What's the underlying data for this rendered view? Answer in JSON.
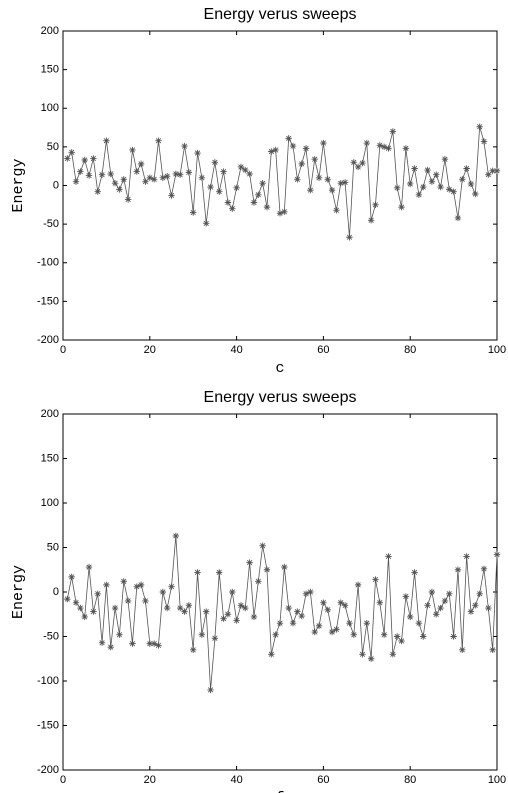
{
  "chart_data": [
    {
      "type": "line",
      "title": "Energy verus sweeps",
      "xlabel": "c",
      "ylabel": "Energy",
      "color": "#555555",
      "xlim": [
        0,
        100
      ],
      "ylim": [
        -200,
        200
      ],
      "xticks": [
        0,
        20,
        40,
        60,
        80,
        100
      ],
      "yticks": [
        -200,
        -150,
        -100,
        -50,
        0,
        50,
        100,
        150,
        200
      ],
      "x": [
        1,
        2,
        3,
        4,
        5,
        6,
        7,
        8,
        9,
        10,
        11,
        12,
        13,
        14,
        15,
        16,
        17,
        18,
        19,
        20,
        21,
        22,
        23,
        24,
        25,
        26,
        27,
        28,
        29,
        30,
        31,
        32,
        33,
        34,
        35,
        36,
        37,
        38,
        39,
        40,
        41,
        42,
        43,
        44,
        45,
        46,
        47,
        48,
        49,
        50,
        51,
        52,
        53,
        54,
        55,
        56,
        57,
        58,
        59,
        60,
        61,
        62,
        63,
        64,
        65,
        66,
        67,
        68,
        69,
        70,
        71,
        72,
        73,
        74,
        75,
        76,
        77,
        78,
        79,
        80,
        81,
        82,
        83,
        84,
        85,
        86,
        87,
        88,
        89,
        90,
        91,
        92,
        93,
        94,
        95,
        96,
        97,
        98,
        99,
        100
      ],
      "values": [
        35,
        43,
        5,
        18,
        33,
        13,
        35,
        -8,
        14,
        58,
        15,
        3,
        -5,
        8,
        -18,
        46,
        18,
        28,
        5,
        10,
        8,
        58,
        10,
        12,
        -13,
        15,
        14,
        51,
        17,
        -35,
        42,
        10,
        -49,
        -2,
        30,
        -8,
        18,
        -22,
        -30,
        -3,
        24,
        20,
        15,
        -22,
        -12,
        3,
        -28,
        44,
        46,
        -36,
        -34,
        61,
        51,
        8,
        28,
        48,
        -6,
        34,
        10,
        55,
        8,
        -6,
        -32,
        3,
        4,
        -67,
        30,
        24,
        29,
        55,
        -45,
        -25,
        52,
        50,
        48,
        70,
        -3,
        -28,
        48,
        2,
        22,
        -12,
        -2,
        20,
        5,
        14,
        -2,
        34,
        -5,
        -8,
        -42,
        8,
        22,
        2,
        -11,
        76,
        57,
        14,
        19,
        19
      ]
    },
    {
      "type": "line",
      "title": "Energy verus sweeps",
      "xlabel": "f",
      "ylabel": "Energy",
      "color": "#555555",
      "xlim": [
        0,
        100
      ],
      "ylim": [
        -200,
        200
      ],
      "xticks": [
        0,
        20,
        40,
        60,
        80,
        100
      ],
      "yticks": [
        -200,
        -150,
        -100,
        -50,
        0,
        50,
        100,
        150,
        200
      ],
      "x": [
        1,
        2,
        3,
        4,
        5,
        6,
        7,
        8,
        9,
        10,
        11,
        12,
        13,
        14,
        15,
        16,
        17,
        18,
        19,
        20,
        21,
        22,
        23,
        24,
        25,
        26,
        27,
        28,
        29,
        30,
        31,
        32,
        33,
        34,
        35,
        36,
        37,
        38,
        39,
        40,
        41,
        42,
        43,
        44,
        45,
        46,
        47,
        48,
        49,
        50,
        51,
        52,
        53,
        54,
        55,
        56,
        57,
        58,
        59,
        60,
        61,
        62,
        63,
        64,
        65,
        66,
        67,
        68,
        69,
        70,
        71,
        72,
        73,
        74,
        75,
        76,
        77,
        78,
        79,
        80,
        81,
        82,
        83,
        84,
        85,
        86,
        87,
        88,
        89,
        90,
        91,
        92,
        93,
        94,
        95,
        96,
        97,
        98,
        99,
        100
      ],
      "values": [
        -8,
        17,
        -12,
        -18,
        -28,
        28,
        -22,
        -2,
        -57,
        8,
        -62,
        -18,
        -48,
        12,
        -10,
        -58,
        6,
        8,
        -10,
        -58,
        -58,
        -60,
        0,
        -18,
        6,
        63,
        -18,
        -22,
        -15,
        -65,
        22,
        -48,
        -22,
        -110,
        -52,
        22,
        -30,
        -25,
        0,
        -32,
        -15,
        -18,
        33,
        -28,
        12,
        52,
        25,
        -70,
        -48,
        -35,
        28,
        -18,
        -35,
        -22,
        -27,
        -2,
        0,
        -45,
        -38,
        -12,
        -20,
        -45,
        -42,
        -12,
        -15,
        -35,
        -48,
        8,
        -70,
        -35,
        -75,
        14,
        -12,
        -48,
        40,
        -70,
        -50,
        -55,
        -5,
        -28,
        22,
        -35,
        -50,
        -15,
        0,
        -25,
        -18,
        -10,
        -2,
        -50,
        25,
        -65,
        40,
        -22,
        -15,
        -2,
        26,
        -18,
        -65,
        42
      ]
    }
  ]
}
